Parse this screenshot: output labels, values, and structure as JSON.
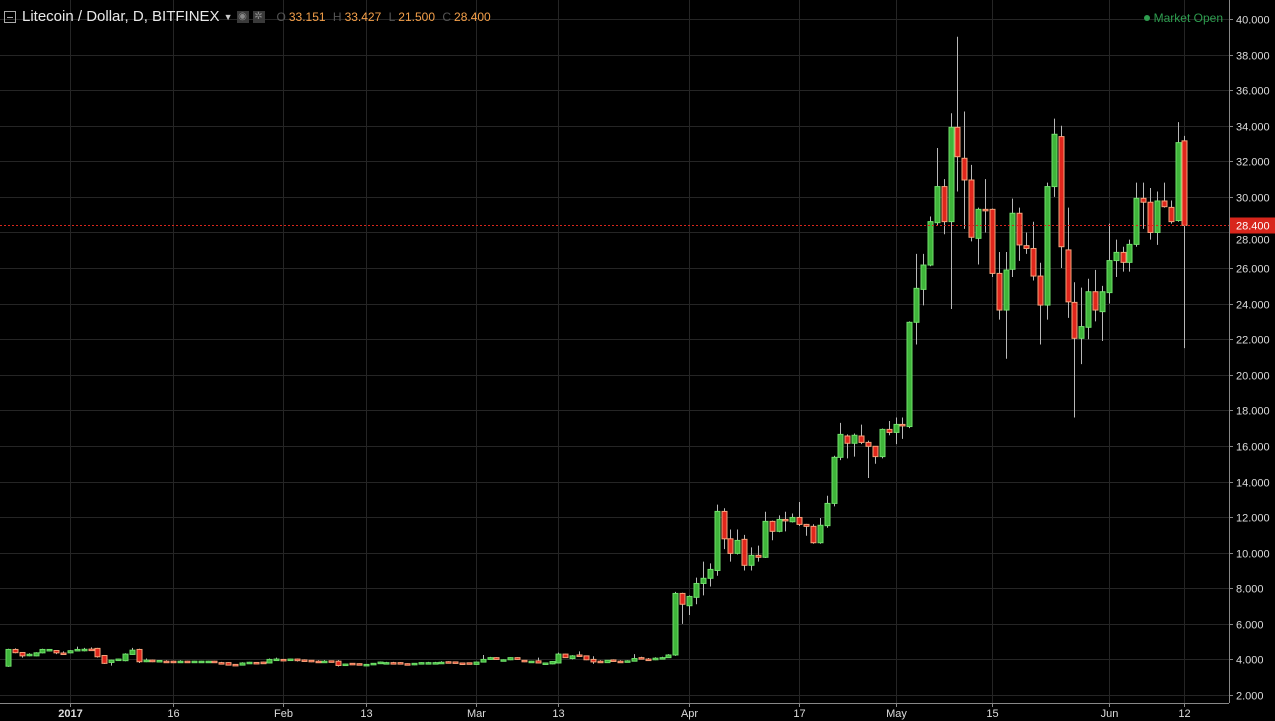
{
  "header": {
    "symbol_title": "Litecoin / Dollar, D, BITFINEX",
    "ohlc": {
      "o_label": "O",
      "o": "33.151",
      "h_label": "H",
      "h": "33.427",
      "l_label": "L",
      "l": "21.500",
      "c_label": "C",
      "c": "28.400"
    },
    "market_status": "Market Open",
    "icons": [
      "collapse-icon",
      "dropdown-caret-icon",
      "eye-icon",
      "gear-icon"
    ]
  },
  "chart_data": {
    "type": "candlestick",
    "title": "Litecoin / Dollar, D, BITFINEX",
    "interval": "1D",
    "first_date": "2016-12-23",
    "last_date": "2017-06-12",
    "ylim": [
      2,
      40
    ],
    "y_ticks": [
      "2.000",
      "4.000",
      "6.000",
      "8.000",
      "10.000",
      "12.000",
      "14.000",
      "16.000",
      "18.000",
      "20.000",
      "22.000",
      "24.000",
      "26.000",
      "28.000",
      "30.000",
      "32.000",
      "34.000",
      "36.000",
      "38.000",
      "40.000"
    ],
    "x_ticks": [
      {
        "label": "2017",
        "date": "2017-01-01"
      },
      {
        "label": "16",
        "date": "2017-01-16"
      },
      {
        "label": "Feb",
        "date": "2017-02-01"
      },
      {
        "label": "13",
        "date": "2017-02-13"
      },
      {
        "label": "Mar",
        "date": "2017-03-01"
      },
      {
        "label": "13",
        "date": "2017-03-13"
      },
      {
        "label": "Apr",
        "date": "2017-04-01"
      },
      {
        "label": "17",
        "date": "2017-04-17"
      },
      {
        "label": "May",
        "date": "2017-05-01"
      },
      {
        "label": "15",
        "date": "2017-05-15"
      },
      {
        "label": "Jun",
        "date": "2017-06-01"
      },
      {
        "label": "12",
        "date": "2017-06-12"
      }
    ],
    "last_price": "28.400",
    "grid": true,
    "colors": {
      "up": "#3fb53a",
      "up_border": "#6fe06a",
      "down": "#e0261c",
      "down_border": "#f7a37a",
      "wick": "#b8b8b8",
      "grid": "#252525",
      "last_price": "#d8261c",
      "market_open": "#2e9d4f"
    },
    "ohlc_columns": [
      "open",
      "high",
      "low",
      "close"
    ],
    "candles": [
      [
        3.62,
        4.6,
        3.58,
        4.56
      ],
      [
        4.56,
        4.62,
        4.35,
        4.38
      ],
      [
        4.39,
        4.42,
        4.1,
        4.2
      ],
      [
        4.27,
        4.35,
        4.18,
        4.29
      ],
      [
        4.2,
        4.4,
        4.18,
        4.37
      ],
      [
        4.37,
        4.6,
        4.34,
        4.56
      ],
      [
        4.5,
        4.58,
        4.45,
        4.56
      ],
      [
        4.5,
        4.52,
        4.3,
        4.37
      ],
      [
        4.36,
        4.45,
        4.25,
        4.34
      ],
      [
        4.37,
        4.52,
        4.35,
        4.49
      ],
      [
        4.49,
        4.72,
        4.47,
        4.56
      ],
      [
        4.56,
        4.65,
        4.45,
        4.57
      ],
      [
        4.58,
        4.68,
        4.5,
        4.57
      ],
      [
        4.62,
        4.65,
        4.1,
        4.15
      ],
      [
        4.22,
        4.25,
        3.75,
        3.78
      ],
      [
        3.83,
        3.98,
        3.65,
        3.96
      ],
      [
        3.96,
        4.04,
        3.94,
        4.02
      ],
      [
        3.93,
        4.35,
        3.9,
        4.3
      ],
      [
        4.28,
        4.65,
        4.26,
        4.52
      ],
      [
        4.56,
        4.6,
        3.8,
        3.87
      ],
      [
        3.87,
        4.05,
        3.85,
        3.96
      ],
      [
        3.96,
        3.98,
        3.85,
        3.87
      ],
      [
        3.92,
        3.96,
        3.88,
        3.94
      ],
      [
        3.9,
        3.95,
        3.85,
        3.88
      ],
      [
        3.9,
        3.92,
        3.83,
        3.85
      ],
      [
        3.85,
        3.95,
        3.83,
        3.9
      ],
      [
        3.9,
        3.92,
        3.84,
        3.86
      ],
      [
        3.86,
        3.92,
        3.84,
        3.9
      ],
      [
        3.86,
        3.92,
        3.84,
        3.9
      ],
      [
        3.86,
        3.92,
        3.84,
        3.9
      ],
      [
        3.9,
        3.92,
        3.83,
        3.85
      ],
      [
        3.82,
        3.86,
        3.77,
        3.8
      ],
      [
        3.82,
        3.84,
        3.66,
        3.68
      ],
      [
        3.72,
        3.74,
        3.66,
        3.68
      ],
      [
        3.68,
        3.84,
        3.66,
        3.8
      ],
      [
        3.8,
        3.86,
        3.78,
        3.84
      ],
      [
        3.83,
        3.85,
        3.8,
        3.82
      ],
      [
        3.85,
        3.87,
        3.74,
        3.76
      ],
      [
        3.8,
        4.05,
        3.78,
        4.0
      ],
      [
        4.0,
        4.1,
        3.98,
        4.02
      ],
      [
        4.0,
        4.02,
        3.91,
        3.93
      ],
      [
        3.95,
        4.04,
        3.93,
        4.02
      ],
      [
        4.02,
        4.05,
        3.88,
        3.93
      ],
      [
        3.97,
        4.0,
        3.9,
        3.95
      ],
      [
        3.95,
        3.97,
        3.85,
        3.87
      ],
      [
        3.9,
        3.95,
        3.85,
        3.88
      ],
      [
        3.88,
        3.96,
        3.86,
        3.9
      ],
      [
        3.92,
        3.94,
        3.85,
        3.87
      ],
      [
        3.9,
        3.96,
        3.6,
        3.66
      ],
      [
        3.66,
        3.76,
        3.64,
        3.74
      ],
      [
        3.78,
        3.8,
        3.74,
        3.76
      ],
      [
        3.76,
        3.78,
        3.7,
        3.72
      ],
      [
        3.7,
        3.74,
        3.68,
        3.72
      ],
      [
        3.72,
        3.8,
        3.7,
        3.78
      ],
      [
        3.76,
        3.88,
        3.74,
        3.85
      ],
      [
        3.8,
        3.86,
        3.78,
        3.82
      ],
      [
        3.82,
        3.86,
        3.78,
        3.8
      ],
      [
        3.82,
        3.85,
        3.72,
        3.74
      ],
      [
        3.76,
        3.78,
        3.73,
        3.75
      ],
      [
        3.7,
        3.8,
        3.68,
        3.78
      ],
      [
        3.78,
        3.84,
        3.76,
        3.82
      ],
      [
        3.8,
        3.86,
        3.78,
        3.82
      ],
      [
        3.8,
        3.86,
        3.78,
        3.82
      ],
      [
        3.82,
        3.9,
        3.8,
        3.84
      ],
      [
        3.87,
        3.9,
        3.8,
        3.82
      ],
      [
        3.86,
        3.88,
        3.8,
        3.82
      ],
      [
        3.8,
        3.82,
        3.77,
        3.79
      ],
      [
        3.81,
        3.83,
        3.73,
        3.75
      ],
      [
        3.72,
        3.88,
        3.7,
        3.85
      ],
      [
        3.85,
        4.25,
        3.83,
        4.0
      ],
      [
        4.0,
        4.14,
        3.98,
        4.1
      ],
      [
        4.1,
        4.12,
        3.98,
        4.0
      ],
      [
        3.95,
        4.0,
        3.93,
        3.98
      ],
      [
        3.98,
        4.12,
        3.96,
        4.1
      ],
      [
        4.1,
        4.12,
        3.98,
        4.0
      ],
      [
        3.95,
        3.97,
        3.85,
        3.87
      ],
      [
        3.85,
        3.92,
        3.83,
        3.9
      ],
      [
        3.92,
        4.1,
        3.78,
        3.8
      ],
      [
        3.72,
        3.82,
        3.7,
        3.8
      ],
      [
        3.75,
        3.9,
        3.73,
        3.88
      ],
      [
        3.8,
        4.38,
        3.78,
        4.3
      ],
      [
        4.3,
        4.32,
        4.08,
        4.1
      ],
      [
        4.05,
        4.24,
        4.0,
        4.2
      ],
      [
        4.25,
        4.45,
        4.16,
        4.18
      ],
      [
        4.2,
        4.22,
        3.96,
        3.98
      ],
      [
        4.0,
        4.18,
        3.75,
        3.86
      ],
      [
        3.9,
        3.95,
        3.84,
        3.86
      ],
      [
        3.82,
        3.97,
        3.8,
        3.95
      ],
      [
        3.97,
        4.0,
        3.88,
        3.9
      ],
      [
        3.9,
        3.95,
        3.8,
        3.82
      ],
      [
        3.85,
        3.95,
        3.83,
        3.92
      ],
      [
        3.9,
        4.3,
        3.88,
        4.05
      ],
      [
        4.1,
        4.15,
        4.0,
        4.03
      ],
      [
        4.02,
        4.08,
        3.96,
        4.0
      ],
      [
        3.98,
        4.12,
        3.96,
        4.07
      ],
      [
        4.05,
        4.15,
        4.03,
        4.1
      ],
      [
        4.1,
        4.3,
        4.08,
        4.25
      ],
      [
        4.25,
        7.8,
        4.2,
        7.71
      ],
      [
        7.71,
        7.75,
        6.0,
        7.1
      ],
      [
        7.02,
        7.6,
        6.5,
        7.54
      ],
      [
        7.49,
        8.6,
        7.1,
        8.27
      ],
      [
        8.27,
        9.5,
        7.6,
        8.56
      ],
      [
        8.56,
        9.4,
        8.1,
        9.06
      ],
      [
        9.0,
        12.7,
        8.7,
        12.32
      ],
      [
        12.32,
        12.5,
        10.2,
        10.78
      ],
      [
        10.78,
        11.3,
        9.5,
        9.96
      ],
      [
        9.96,
        11.3,
        9.9,
        10.69
      ],
      [
        10.75,
        11.0,
        9.0,
        9.29
      ],
      [
        9.29,
        10.3,
        9.0,
        9.85
      ],
      [
        9.85,
        10.4,
        9.5,
        9.74
      ],
      [
        9.74,
        12.3,
        9.7,
        11.76
      ],
      [
        11.76,
        11.8,
        10.7,
        11.2
      ],
      [
        11.2,
        12.1,
        11.15,
        11.87
      ],
      [
        11.87,
        12.3,
        11.2,
        11.83
      ],
      [
        11.74,
        12.2,
        11.7,
        11.98
      ],
      [
        11.98,
        12.85,
        11.5,
        11.59
      ],
      [
        11.59,
        11.62,
        10.95,
        11.48
      ],
      [
        11.48,
        11.6,
        10.5,
        10.56
      ],
      [
        10.56,
        11.95,
        10.5,
        11.54
      ],
      [
        11.52,
        13.2,
        11.4,
        12.77
      ],
      [
        12.77,
        15.45,
        12.6,
        15.36
      ],
      [
        15.36,
        17.3,
        15.2,
        16.65
      ],
      [
        16.56,
        16.65,
        15.3,
        16.15
      ],
      [
        16.15,
        16.7,
        15.4,
        16.6
      ],
      [
        16.56,
        17.2,
        16.1,
        16.2
      ],
      [
        16.2,
        16.3,
        14.2,
        15.98
      ],
      [
        15.98,
        16.0,
        15.0,
        15.4
      ],
      [
        15.4,
        16.98,
        15.3,
        16.93
      ],
      [
        16.93,
        17.4,
        16.6,
        16.76
      ],
      [
        16.76,
        17.6,
        16.1,
        17.21
      ],
      [
        17.21,
        17.6,
        16.4,
        17.17
      ],
      [
        17.09,
        23.0,
        17.0,
        22.95
      ],
      [
        22.95,
        26.8,
        21.7,
        24.86
      ],
      [
        24.8,
        26.8,
        23.9,
        26.17
      ],
      [
        26.17,
        28.9,
        26.1,
        28.61
      ],
      [
        28.55,
        32.75,
        28.4,
        30.58
      ],
      [
        30.58,
        31.0,
        27.9,
        28.61
      ],
      [
        28.61,
        34.7,
        23.7,
        33.91
      ],
      [
        33.91,
        39.0,
        30.3,
        32.26
      ],
      [
        32.17,
        34.8,
        28.2,
        30.95
      ],
      [
        30.95,
        31.8,
        27.5,
        27.73
      ],
      [
        27.67,
        29.4,
        26.2,
        29.3
      ],
      [
        29.3,
        31.0,
        28.0,
        29.28
      ],
      [
        29.3,
        29.35,
        25.5,
        25.7
      ],
      [
        25.7,
        26.9,
        23.1,
        23.64
      ],
      [
        23.64,
        26.9,
        20.9,
        25.89
      ],
      [
        25.93,
        29.9,
        25.5,
        29.08
      ],
      [
        29.08,
        29.4,
        26.4,
        27.3
      ],
      [
        27.26,
        28.0,
        26.8,
        27.1
      ],
      [
        27.1,
        28.6,
        25.3,
        25.55
      ],
      [
        25.55,
        26.3,
        21.7,
        23.92
      ],
      [
        23.92,
        30.8,
        23.1,
        30.58
      ],
      [
        30.58,
        34.4,
        30.0,
        33.52
      ],
      [
        33.39,
        34.0,
        26.0,
        27.2
      ],
      [
        27.02,
        29.4,
        23.2,
        24.1
      ],
      [
        24.07,
        25.2,
        17.6,
        22.05
      ],
      [
        22.05,
        24.9,
        20.6,
        22.71
      ],
      [
        22.67,
        25.4,
        22.0,
        24.67
      ],
      [
        24.67,
        25.9,
        23.0,
        23.64
      ],
      [
        23.55,
        25.0,
        21.9,
        24.67
      ],
      [
        24.62,
        28.5,
        24.0,
        26.42
      ],
      [
        26.42,
        27.6,
        25.5,
        26.88
      ],
      [
        26.88,
        27.2,
        25.8,
        26.32
      ],
      [
        26.32,
        27.6,
        25.8,
        27.33
      ],
      [
        27.33,
        30.8,
        27.2,
        29.92
      ],
      [
        29.92,
        30.8,
        28.2,
        29.7
      ],
      [
        29.7,
        30.5,
        27.6,
        28.0
      ],
      [
        28.0,
        30.3,
        27.3,
        29.77
      ],
      [
        29.77,
        30.8,
        29.4,
        29.45
      ],
      [
        29.41,
        29.8,
        28.5,
        28.61
      ],
      [
        28.67,
        34.2,
        28.6,
        33.05
      ],
      [
        33.151,
        33.427,
        21.5,
        28.4
      ]
    ]
  }
}
